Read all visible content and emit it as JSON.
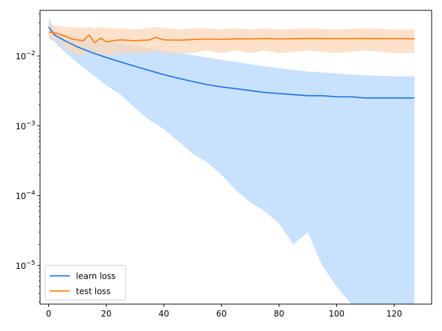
{
  "chart_data": {
    "type": "line",
    "title": "",
    "xlabel": "",
    "ylabel": "",
    "xlim": [
      -3,
      133
    ],
    "ylim": [
      2.8e-06,
      0.045
    ],
    "yscale": "log",
    "grid": false,
    "legend_position": "bottom-left",
    "x_ticks": [
      0,
      20,
      40,
      60,
      80,
      100,
      120
    ],
    "y_ticks": [
      {
        "value": 1e-05,
        "base": "10",
        "exp": "−5"
      },
      {
        "value": 0.0001,
        "base": "10",
        "exp": "−4"
      },
      {
        "value": 0.001,
        "base": "10",
        "exp": "−3"
      },
      {
        "value": 0.01,
        "base": "10",
        "exp": "−2"
      }
    ],
    "colors": {
      "learn_line": "#1f77e4",
      "learn_band": "#bedcfb",
      "test_line": "#ff7f0e",
      "test_band": "#fdd7ba",
      "axis": "#000000"
    },
    "series": [
      {
        "name": "learn loss",
        "x": [
          0,
          2,
          5,
          10,
          15,
          20,
          25,
          30,
          35,
          40,
          45,
          50,
          55,
          60,
          65,
          70,
          75,
          80,
          85,
          90,
          95,
          100,
          105,
          110,
          115,
          120,
          127
        ],
        "mean": [
          0.026,
          0.02,
          0.017,
          0.0135,
          0.0112,
          0.0095,
          0.0082,
          0.0071,
          0.0062,
          0.0054,
          0.0048,
          0.0043,
          0.0039,
          0.0036,
          0.0034,
          0.0032,
          0.003,
          0.0029,
          0.0028,
          0.0027,
          0.0027,
          0.0026,
          0.0026,
          0.0025,
          0.0025,
          0.0025,
          0.0025
        ],
        "upper": [
          0.035,
          0.024,
          0.021,
          0.019,
          0.017,
          0.016,
          0.015,
          0.014,
          0.013,
          0.012,
          0.0112,
          0.0103,
          0.0095,
          0.0088,
          0.0082,
          0.0076,
          0.0071,
          0.0067,
          0.0063,
          0.006,
          0.0058,
          0.0056,
          0.0054,
          0.0053,
          0.0052,
          0.0051,
          0.0051
        ],
        "lower": [
          0.018,
          0.016,
          0.012,
          0.008,
          0.0055,
          0.0038,
          0.0028,
          0.0018,
          0.0012,
          0.0009,
          0.0006,
          0.0004,
          0.0003,
          0.0002,
          0.00012,
          8e-05,
          6e-05,
          4e-05,
          2e-05,
          3e-05,
          1e-05,
          5e-06,
          2e-06,
          2.8e-06,
          2.8e-06,
          2.8e-06,
          2.8e-06
        ]
      },
      {
        "name": "test loss",
        "x": [
          0,
          3,
          6,
          8,
          12,
          14,
          16,
          18,
          20,
          25,
          30,
          35,
          37,
          40,
          45,
          50,
          55,
          60,
          65,
          70,
          75,
          80,
          90,
          100,
          110,
          120,
          127
        ],
        "mean": [
          0.022,
          0.021,
          0.019,
          0.0175,
          0.0165,
          0.02,
          0.0155,
          0.018,
          0.016,
          0.017,
          0.0165,
          0.017,
          0.0185,
          0.017,
          0.0168,
          0.0172,
          0.0175,
          0.0173,
          0.0176,
          0.0175,
          0.0177,
          0.0175,
          0.0178,
          0.0177,
          0.0178,
          0.0177,
          0.0176
        ],
        "upper": [
          0.028,
          0.027,
          0.026,
          0.026,
          0.025,
          0.026,
          0.025,
          0.026,
          0.025,
          0.025,
          0.024,
          0.025,
          0.026,
          0.025,
          0.024,
          0.025,
          0.025,
          0.024,
          0.025,
          0.024,
          0.025,
          0.024,
          0.025,
          0.024,
          0.025,
          0.024,
          0.024
        ],
        "lower": [
          0.018,
          0.017,
          0.013,
          0.011,
          0.01,
          0.013,
          0.01,
          0.011,
          0.01,
          0.011,
          0.011,
          0.011,
          0.012,
          0.011,
          0.011,
          0.011,
          0.012,
          0.011,
          0.012,
          0.011,
          0.012,
          0.011,
          0.012,
          0.011,
          0.012,
          0.011,
          0.011
        ]
      }
    ]
  }
}
